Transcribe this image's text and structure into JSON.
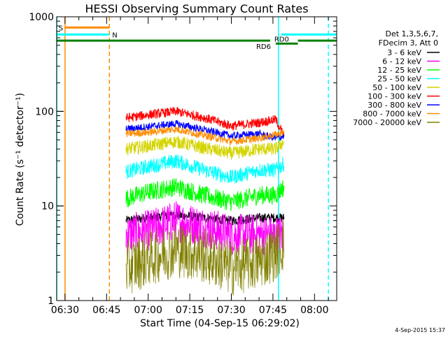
{
  "chart_data": {
    "type": "line",
    "title": "HESSI Observing Summary Count Rates",
    "xlabel": "Start Time (04-Sep-15 06:29:02)",
    "ylabel": "Count Rate (s⁻¹ detector⁻¹)",
    "y_scale": "log",
    "ylim": [
      1,
      1000
    ],
    "xlim": [
      "06:27",
      "08:08"
    ],
    "x_ticks": [
      "06:30",
      "06:45",
      "07:00",
      "07:15",
      "07:30",
      "07:45",
      "08:00"
    ],
    "y_ticks": [
      "1",
      "10",
      "100",
      "1000"
    ],
    "legend_header": [
      "Det 1,3,5,6,7,",
      "FDecim 3, Att 0"
    ],
    "legend_position": "top-right",
    "timestamp": "4-Sep-2015 15:37",
    "series": [
      {
        "name": "3 - 6 keV",
        "color": "#000000",
        "x": [
          "06:52",
          "07:00",
          "07:10",
          "07:20",
          "07:30",
          "07:40",
          "07:46",
          "07:49"
        ],
        "y": [
          7,
          7.5,
          8,
          7.5,
          7,
          7.5,
          7.5,
          7.5
        ]
      },
      {
        "name": "6 - 12 keV",
        "color": "#ff00ff",
        "x": [
          "06:52",
          "07:00",
          "07:10",
          "07:20",
          "07:30",
          "07:40",
          "07:46",
          "07:49"
        ],
        "y": [
          5,
          5.5,
          7,
          6,
          5,
          5,
          4.8,
          5
        ]
      },
      {
        "name": "12 - 25 keV",
        "color": "#00ff00",
        "x": [
          "06:52",
          "07:00",
          "07:10",
          "07:20",
          "07:30",
          "07:40",
          "07:46",
          "07:49"
        ],
        "y": [
          12,
          14,
          16,
          13,
          11,
          13,
          13,
          16
        ]
      },
      {
        "name": "25 - 50 keV",
        "color": "#00ffff",
        "x": [
          "06:52",
          "07:00",
          "07:10",
          "07:20",
          "07:30",
          "07:40",
          "07:46",
          "07:49"
        ],
        "y": [
          23,
          26,
          30,
          24,
          20,
          24,
          24,
          28
        ]
      },
      {
        "name": "50 - 100 keV",
        "color": "#d4d400",
        "x": [
          "06:52",
          "07:00",
          "07:10",
          "07:20",
          "07:30",
          "07:40",
          "07:46",
          "07:49"
        ],
        "y": [
          40,
          43,
          48,
          41,
          36,
          40,
          40,
          48
        ]
      },
      {
        "name": "100 - 300 keV",
        "color": "#ff0000",
        "x": [
          "06:52",
          "07:00",
          "07:10",
          "07:20",
          "07:30",
          "07:40",
          "07:46",
          "07:49"
        ],
        "y": [
          85,
          92,
          100,
          86,
          70,
          76,
          82,
          55
        ]
      },
      {
        "name": "300 - 800 keV",
        "color": "#0000ff",
        "x": [
          "06:52",
          "07:00",
          "07:10",
          "07:20",
          "07:30",
          "07:40",
          "07:46",
          "07:49"
        ],
        "y": [
          65,
          69,
          74,
          64,
          55,
          58,
          52,
          55
        ]
      },
      {
        "name": "800 - 7000 keV",
        "color": "#ff8c00",
        "x": [
          "06:52",
          "07:00",
          "07:10",
          "07:20",
          "07:30",
          "07:40",
          "07:46",
          "07:49"
        ],
        "y": [
          58,
          60,
          65,
          56,
          48,
          52,
          57,
          60
        ]
      },
      {
        "name": "7000 - 20000 keV",
        "color": "#808000",
        "x": [
          "06:52",
          "07:00",
          "07:10",
          "07:20",
          "07:30",
          "07:40",
          "07:46",
          "07:49"
        ],
        "y": [
          2.2,
          2.8,
          3.5,
          3,
          2.2,
          2.6,
          3.2,
          4
        ]
      }
    ],
    "flag_bars": [
      {
        "label": "S",
        "color": "#ff8c00",
        "y": 770,
        "start": "06:30",
        "end": "06:46"
      },
      {
        "label": "N",
        "color": "#00ffff",
        "y": 650,
        "start": "06:27",
        "end": "06:46"
      },
      {
        "label": "",
        "color": "#00ffff",
        "y": 650,
        "start": "07:48",
        "end": "08:08"
      },
      {
        "label": "RD6",
        "color": "#008000",
        "y": 560,
        "start": "06:27",
        "end": "07:44"
      },
      {
        "label": "RD0",
        "color": "#008000",
        "y": 520,
        "start": "07:46",
        "end": "07:54"
      },
      {
        "label": "",
        "color": "#008000",
        "y": 560,
        "start": "07:54",
        "end": "08:08"
      }
    ],
    "vertical_markers": [
      {
        "x": "06:27",
        "color": "#00ffff",
        "style": "solid"
      },
      {
        "x": "06:30",
        "color": "#ff8c00",
        "style": "solid"
      },
      {
        "x": "06:46",
        "color": "#ff8c00",
        "style": "dashed"
      },
      {
        "x": "07:47",
        "color": "#00ffff",
        "style": "solid"
      },
      {
        "x": "08:05",
        "color": "#00ffff",
        "style": "dashed"
      }
    ]
  }
}
